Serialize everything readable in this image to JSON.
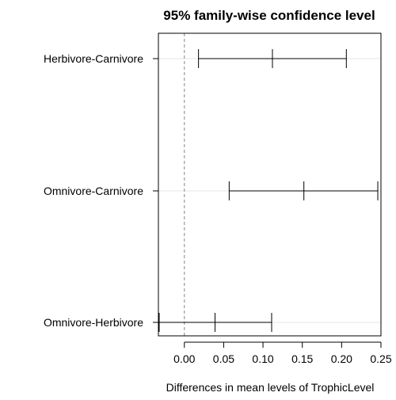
{
  "chart_data": {
    "type": "errorbar",
    "title": "95% family-wise confidence level",
    "xlabel": "Differences in mean levels of TrophicLevel",
    "ylabel": "",
    "xlim": [
      -0.033,
      0.25
    ],
    "xticks": [
      0.0,
      0.05,
      0.1,
      0.15,
      0.2,
      0.25
    ],
    "xtick_labels": [
      "0.00",
      "0.05",
      "0.10",
      "0.15",
      "0.20",
      "0.25"
    ],
    "reference_line": 0,
    "grid": true,
    "categories": [
      "Herbivore-Carnivore",
      "Omnivore-Carnivore",
      "Omnivore-Herbivore"
    ],
    "intervals": [
      {
        "label": "Herbivore-Carnivore",
        "lwr": 0.018,
        "diff": 0.112,
        "upr": 0.206
      },
      {
        "label": "Omnivore-Carnivore",
        "lwr": 0.057,
        "diff": 0.152,
        "upr": 0.246
      },
      {
        "label": "Omnivore-Herbivore",
        "lwr": -0.032,
        "diff": 0.039,
        "upr": 0.111
      }
    ],
    "colors": {
      "interval": "#000000",
      "reference": "#999999",
      "grid": "#e6e6e6",
      "axis": "#000000"
    }
  }
}
